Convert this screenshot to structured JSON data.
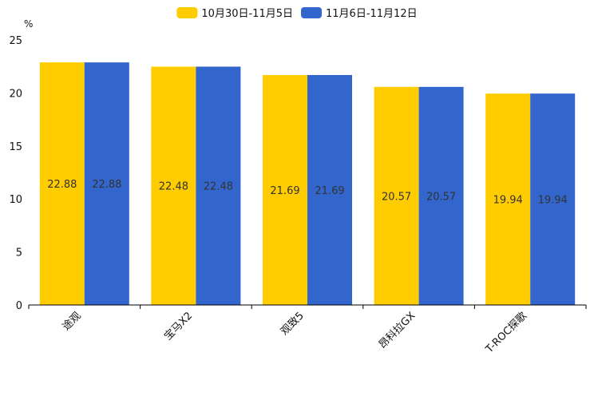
{
  "chart_data": {
    "type": "bar",
    "unit_label": "%",
    "categories": [
      "途观",
      "宝马X2",
      "观致5",
      "昂科拉GX",
      "T-ROC探歌"
    ],
    "series": [
      {
        "name": "10月30日-11月5日",
        "color": "#FFCC00",
        "values": [
          22.88,
          22.48,
          21.69,
          20.57,
          19.94
        ]
      },
      {
        "name": "11月6日-11月12日",
        "color": "#3366CC",
        "values": [
          22.88,
          22.48,
          21.69,
          20.57,
          19.94
        ]
      }
    ],
    "ylim": [
      0,
      25
    ],
    "yticks": [
      0,
      5,
      10,
      15,
      20,
      25
    ],
    "legend_position": "top-center",
    "grid": false
  }
}
